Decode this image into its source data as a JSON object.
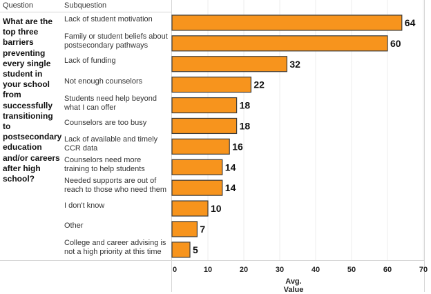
{
  "headers": {
    "question": "Question",
    "subquestion": "Subquestion"
  },
  "question_text": "What are the top three barriers preventing every single student in your school from successfully transitioning to postsecondary education and/or careers after high school?",
  "colors": {
    "bar_fill": "#F7941D",
    "bar_stroke": "#3a3a3a",
    "grid": "#eeeeee"
  },
  "chart_data": {
    "type": "bar",
    "orientation": "horizontal",
    "title": "",
    "xlabel": "Avg. Value",
    "ylabel": "Subquestion",
    "xlim": [
      0,
      70
    ],
    "x_ticks": [
      "0",
      "10",
      "20",
      "30",
      "40",
      "50",
      "60",
      "70"
    ],
    "grid": true,
    "categories": [
      "Lack of student motivation",
      "Family or student beliefs about postsecondary pathways",
      "Lack of funding",
      "Not enough counselors",
      "Students need help beyond what I can offer",
      "Counselors are too busy",
      "Lack of available and timely CCR data",
      "Counselors need more training to help students",
      "Needed supports are out of reach to those who need them",
      "I don't know",
      "Other",
      "College and career advising is not a high priority at this time"
    ],
    "values": [
      64,
      60,
      32,
      22,
      18,
      18,
      16,
      14,
      14,
      10,
      7,
      5
    ],
    "value_labels": [
      "64",
      "60",
      "32",
      "22",
      "18",
      "18",
      "16",
      "14",
      "14",
      "10",
      "7",
      "5"
    ]
  }
}
